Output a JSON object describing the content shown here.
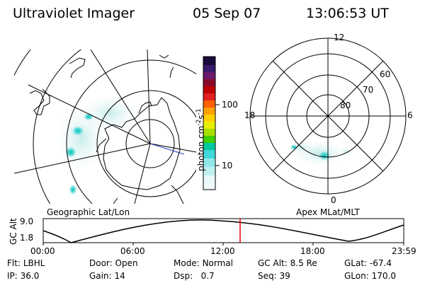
{
  "header": {
    "title": "Ultraviolet Imager",
    "date": "05 Sep 07",
    "time": "13:06:53 UT"
  },
  "colorbar": {
    "ticks": [
      "100",
      "10"
    ],
    "unit_main": "photon cm",
    "unit_exp1": "-2",
    "unit_s": "s",
    "unit_exp2": "-1",
    "colors": [
      "#1a0a3c",
      "#3a1a6a",
      "#6a1a6a",
      "#8a0a2a",
      "#c00000",
      "#e02020",
      "#ff6000",
      "#ffa000",
      "#ffd000",
      "#e8f000",
      "#a8e000",
      "#40d000",
      "#00c8a0",
      "#40d8d8",
      "#90e8e8",
      "#d8f4f4"
    ]
  },
  "left_map": {
    "label": "Geographic Lat/Lon"
  },
  "right_map": {
    "label": "Apex MLat/MLT",
    "mlt_labels": [
      "12",
      "18",
      "6",
      "0"
    ],
    "mlat_labels": [
      "60",
      "70",
      "80"
    ]
  },
  "altitude_plot": {
    "ylabel": "GC Alt",
    "yticks": [
      "9.0",
      "1.8"
    ],
    "xticks": [
      "00:00",
      "06:00",
      "12:00",
      "18:00",
      "23:59"
    ]
  },
  "status": {
    "flt_label": "Flt:",
    "flt_value": "LBHL",
    "ip_label": "IP:",
    "ip_value": "36.0",
    "door_label": "Door:",
    "door_value": "Open",
    "gain_label": "Gain:",
    "gain_value": "14",
    "mode_label": "Mode:",
    "mode_value": "Normal",
    "dsp_label": "Dsp:",
    "dsp_value": "0.7",
    "gcalt_label": "GC Alt:",
    "gcalt_value": "8.5 Re",
    "seq_label": "Seq:",
    "seq_value": "39",
    "glat_label": "GLat:",
    "glat_value": "-67.4",
    "glon_label": "GLon:",
    "glon_value": "170.0"
  }
}
